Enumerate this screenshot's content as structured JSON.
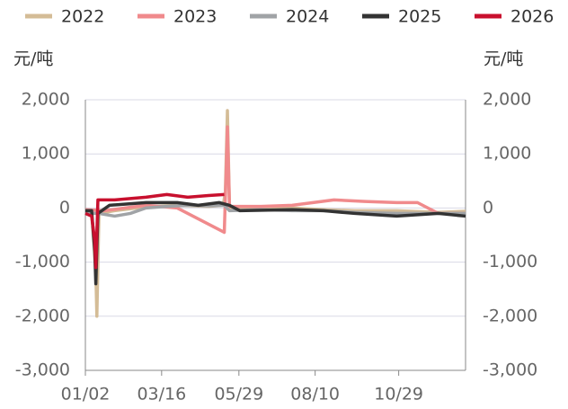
{
  "chart_data": {
    "type": "line",
    "y_label": "元/吨",
    "y2_label": "元/吨",
    "xlim": [
      2,
      366
    ],
    "xticks": [
      {
        "value": 2,
        "label": "01/02"
      },
      {
        "value": 75,
        "label": "03/16"
      },
      {
        "value": 149,
        "label": "05/29"
      },
      {
        "value": 222,
        "label": "08/10"
      },
      {
        "value": 302,
        "label": "10/29"
      }
    ],
    "ylim": [
      -3000,
      2000
    ],
    "yticks": [
      {
        "value": -3000,
        "label": "-3,000"
      },
      {
        "value": -2000,
        "label": "-2,000"
      },
      {
        "value": -1000,
        "label": "-1,000"
      },
      0,
      {
        "value": 1000,
        "label": "1,000"
      },
      {
        "value": 2000,
        "label": "2,000"
      }
    ],
    "y2lim": [
      -3000,
      2000
    ],
    "y2ticks": [
      {
        "value": -3000,
        "label": "-3,000"
      },
      {
        "value": -2000,
        "label": "-2,000"
      },
      {
        "value": -1000,
        "label": "-1,000"
      },
      0,
      {
        "value": 1000,
        "label": "1,000"
      },
      {
        "value": 2000,
        "label": "2,000"
      }
    ],
    "grid": true,
    "series": [
      {
        "name": "2022",
        "color": "#d4bc96",
        "x": [
          2,
          8,
          12,
          13,
          15,
          30,
          60,
          90,
          120,
          134,
          136,
          138,
          140,
          170,
          200,
          230,
          260,
          300,
          340,
          366
        ],
        "values": [
          -100,
          -100,
          -1200,
          -2000,
          -100,
          -50,
          20,
          50,
          30,
          50,
          300,
          1800,
          0,
          20,
          0,
          -30,
          -50,
          -50,
          -80,
          -60
        ]
      },
      {
        "name": "2023",
        "color": "#f08a8c",
        "x": [
          2,
          20,
          40,
          60,
          90,
          100,
          110,
          120,
          130,
          135,
          137,
          138,
          140,
          170,
          200,
          220,
          240,
          270,
          300,
          320,
          340,
          366
        ],
        "values": [
          -30,
          -50,
          0,
          50,
          0,
          -100,
          -200,
          -300,
          -400,
          -450,
          800,
          1500,
          30,
          30,
          50,
          100,
          150,
          120,
          100,
          100,
          -100,
          -100
        ]
      },
      {
        "name": "2024",
        "color": "#a0a3a6",
        "x": [
          2,
          15,
          30,
          45,
          60,
          80,
          100,
          120,
          135,
          140,
          170,
          200,
          230,
          260,
          300,
          340,
          366
        ],
        "values": [
          -100,
          -100,
          -150,
          -100,
          0,
          30,
          50,
          40,
          50,
          -50,
          -30,
          -50,
          -50,
          -80,
          -100,
          -100,
          -100
        ]
      },
      {
        "name": "2025",
        "color": "#333333",
        "x": [
          2,
          8,
          11,
          12,
          14,
          25,
          60,
          90,
          110,
          130,
          140,
          150,
          200,
          230,
          260,
          300,
          340,
          366
        ],
        "values": [
          -50,
          -50,
          -800,
          -1400,
          -100,
          50,
          100,
          100,
          50,
          100,
          50,
          -50,
          -30,
          -50,
          -100,
          -150,
          -100,
          -150
        ]
      },
      {
        "name": "2026",
        "color": "#c8102e",
        "x": [
          2,
          8,
          11,
          12,
          14,
          30,
          60,
          80,
          100,
          120,
          135
        ],
        "values": [
          -100,
          -150,
          -600,
          -1100,
          150,
          150,
          200,
          250,
          200,
          230,
          250
        ]
      }
    ]
  }
}
